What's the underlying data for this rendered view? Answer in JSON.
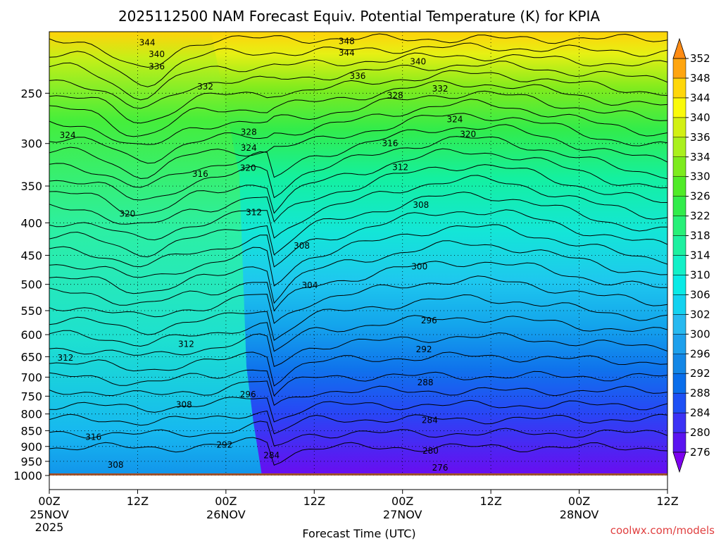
{
  "title": "2025112500 NAM Forecast Equiv. Potential Temperature (K) for KPIA",
  "credit": "coolwx.com/models",
  "chart_data": {
    "type": "heatmap",
    "title": "2025112500 NAM Forecast Equiv. Potential Temperature (K) for KPIA",
    "xlabel": "Forecast Time (UTC)",
    "ylabel": "",
    "x_ticks": [
      {
        "hour": 0,
        "label": "00Z",
        "sub1": "25NOV",
        "sub2": "2025"
      },
      {
        "hour": 12,
        "label": "12Z",
        "sub1": "",
        "sub2": ""
      },
      {
        "hour": 24,
        "label": "00Z",
        "sub1": "26NOV",
        "sub2": ""
      },
      {
        "hour": 36,
        "label": "12Z",
        "sub1": "",
        "sub2": ""
      },
      {
        "hour": 48,
        "label": "00Z",
        "sub1": "27NOV",
        "sub2": ""
      },
      {
        "hour": 60,
        "label": "12Z",
        "sub1": "",
        "sub2": ""
      },
      {
        "hour": 72,
        "label": "00Z",
        "sub1": "28NOV",
        "sub2": ""
      },
      {
        "hour": 84,
        "label": "12Z",
        "sub1": "",
        "sub2": ""
      }
    ],
    "xlim_hours": [
      0,
      84
    ],
    "y_ticks": [
      250,
      300,
      350,
      400,
      450,
      500,
      550,
      600,
      650,
      700,
      750,
      800,
      850,
      900,
      950,
      1000
    ],
    "ylim_hPa": [
      200,
      1000
    ],
    "y_scale": "log-pressure (inverted)",
    "grid": true,
    "colorbar": {
      "levels": [
        276,
        280,
        284,
        288,
        292,
        296,
        300,
        302,
        306,
        310,
        314,
        318,
        322,
        326,
        330,
        334,
        336,
        340,
        344,
        348,
        352
      ],
      "colors": [
        "#7d00f0",
        "#5a14f0",
        "#3c32f5",
        "#1e50f5",
        "#0a6eeb",
        "#1487e6",
        "#1ea0ec",
        "#28b9f0",
        "#14d2f0",
        "#0aeae6",
        "#14f0c8",
        "#1ef0a0",
        "#28f078",
        "#32ec4b",
        "#50eb28",
        "#7deb1e",
        "#aaf01e",
        "#d2f014",
        "#fafa0a",
        "#ffd70a",
        "#ffa50f",
        "#ff8c14"
      ]
    },
    "contour_labels": [
      {
        "value": "344",
        "hour": 13.3,
        "hPa": 208
      },
      {
        "value": "340",
        "hour": 14.6,
        "hPa": 217
      },
      {
        "value": "336",
        "hour": 14.6,
        "hPa": 227
      },
      {
        "value": "348",
        "hour": 40.4,
        "hPa": 207
      },
      {
        "value": "344",
        "hour": 40.4,
        "hPa": 216
      },
      {
        "value": "340",
        "hour": 50.1,
        "hPa": 223
      },
      {
        "value": "336",
        "hour": 41.9,
        "hPa": 235
      },
      {
        "value": "332",
        "hour": 21.2,
        "hPa": 244
      },
      {
        "value": "328",
        "hour": 47.0,
        "hPa": 252
      },
      {
        "value": "332",
        "hour": 53.1,
        "hPa": 246
      },
      {
        "value": "324",
        "hour": 55.1,
        "hPa": 275
      },
      {
        "value": "320",
        "hour": 56.9,
        "hPa": 290
      },
      {
        "value": "324",
        "hour": 2.5,
        "hPa": 291
      },
      {
        "value": "328",
        "hour": 27.1,
        "hPa": 288
      },
      {
        "value": "324",
        "hour": 27.1,
        "hPa": 305
      },
      {
        "value": "316",
        "hour": 46.3,
        "hPa": 300
      },
      {
        "value": "320",
        "hour": 27.0,
        "hPa": 328
      },
      {
        "value": "316",
        "hour": 20.5,
        "hPa": 335
      },
      {
        "value": "312",
        "hour": 47.7,
        "hPa": 327
      },
      {
        "value": "308",
        "hour": 50.5,
        "hPa": 375
      },
      {
        "value": "312",
        "hour": 27.8,
        "hPa": 385
      },
      {
        "value": "320",
        "hour": 10.6,
        "hPa": 387
      },
      {
        "value": "308",
        "hour": 34.3,
        "hPa": 435
      },
      {
        "value": "300",
        "hour": 50.3,
        "hPa": 469
      },
      {
        "value": "304",
        "hour": 35.4,
        "hPa": 502
      },
      {
        "value": "296",
        "hour": 51.6,
        "hPa": 570
      },
      {
        "value": "292",
        "hour": 50.9,
        "hPa": 633
      },
      {
        "value": "312",
        "hour": 18.6,
        "hPa": 621
      },
      {
        "value": "312",
        "hour": 2.2,
        "hPa": 653
      },
      {
        "value": "288",
        "hour": 51.1,
        "hPa": 714
      },
      {
        "value": "296",
        "hour": 27.0,
        "hPa": 745
      },
      {
        "value": "308",
        "hour": 18.3,
        "hPa": 774
      },
      {
        "value": "284",
        "hour": 51.7,
        "hPa": 818
      },
      {
        "value": "316",
        "hour": 6.0,
        "hPa": 870
      },
      {
        "value": "292",
        "hour": 23.8,
        "hPa": 895
      },
      {
        "value": "284",
        "hour": 30.2,
        "hPa": 930
      },
      {
        "value": "280",
        "hour": 51.8,
        "hPa": 915
      },
      {
        "value": "308",
        "hour": 9.0,
        "hPa": 962
      },
      {
        "value": "276",
        "hour": 53.1,
        "hPa": 972
      }
    ]
  }
}
